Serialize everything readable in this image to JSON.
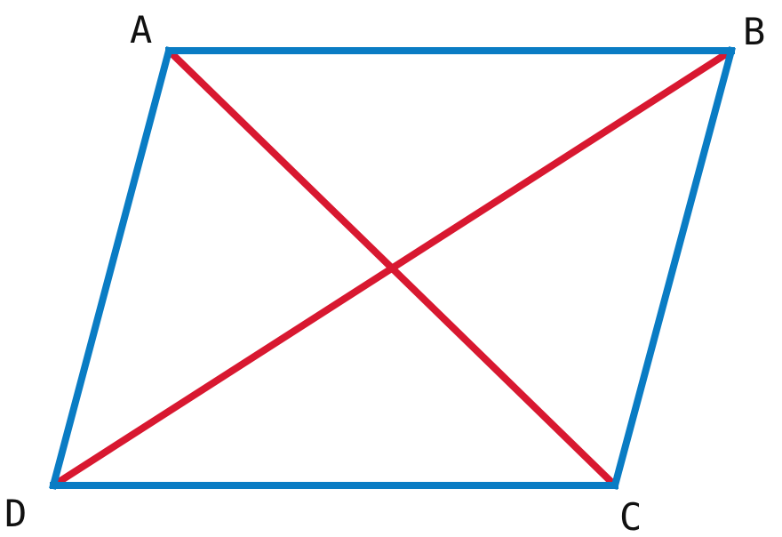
{
  "figure": {
    "shape": "parallelogram",
    "vertices": [
      {
        "id": "A",
        "label": "A"
      },
      {
        "id": "B",
        "label": "B"
      },
      {
        "id": "C",
        "label": "C"
      },
      {
        "id": "D",
        "label": "D"
      }
    ],
    "sides": [
      "AB",
      "BC",
      "CD",
      "DA"
    ],
    "diagonals": [
      "AC",
      "BD"
    ]
  },
  "colors": {
    "sides": "#0a7cc4",
    "diagonals": "#d81830",
    "labels": "#111111",
    "background": "#ffffff"
  }
}
